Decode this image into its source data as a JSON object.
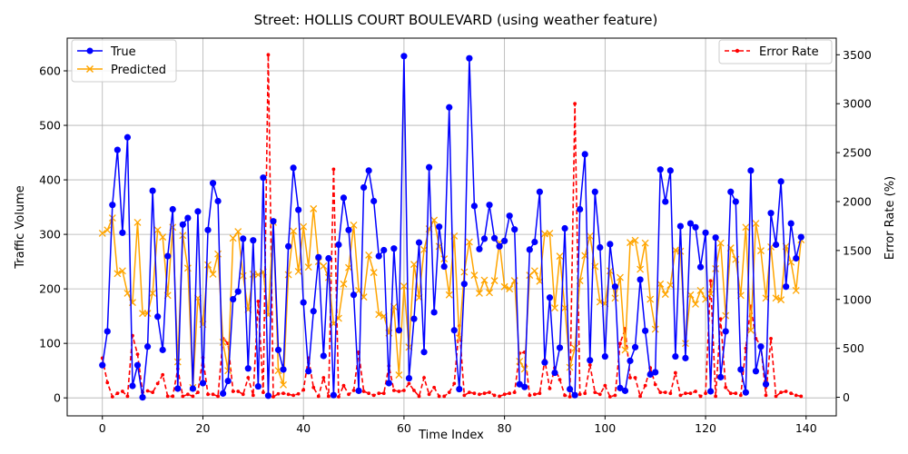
{
  "chart_data": {
    "type": "line",
    "title": "Street: HOLLIS COURT BOULEVARD (using weather feature)",
    "xlabel": "Time Index",
    "ylabel": "Traffic Volume",
    "y2label": "Error Rate (%)",
    "xlim": [
      -7,
      146
    ],
    "ylim": [
      -33,
      660
    ],
    "y2lim": [
      -190,
      3670
    ],
    "x_ticks": [
      0,
      20,
      40,
      60,
      80,
      100,
      120,
      140
    ],
    "y_ticks": [
      0,
      100,
      200,
      300,
      400,
      500,
      600
    ],
    "y2_ticks": [
      0,
      500,
      1000,
      1500,
      2000,
      2500,
      3000,
      3500
    ],
    "grid": true,
    "legend_left_placement": "top-left",
    "legend_right_placement": "top-right",
    "colors": {
      "true": "#0000ff",
      "predicted": "#ffa500",
      "error": "#ff0000"
    },
    "series": [
      {
        "name": "True",
        "axis": "left",
        "style": "solid line, circle markers",
        "values": [
          60,
          122,
          354,
          455,
          303,
          478,
          22,
          60,
          1,
          94,
          380,
          149,
          88,
          260,
          346,
          17,
          318,
          330,
          17,
          342,
          27,
          308,
          394,
          361,
          8,
          31,
          181,
          195,
          292,
          54,
          289,
          21,
          404,
          4,
          324,
          88,
          52,
          278,
          422,
          345,
          175,
          49,
          159,
          258,
          77,
          256,
          5,
          281,
          367,
          308,
          189,
          13,
          386,
          417,
          361,
          260,
          271,
          27,
          274,
          124,
          627,
          36,
          145,
          285,
          84,
          423,
          157,
          314,
          241,
          533,
          124,
          16,
          209,
          623,
          352,
          273,
          292,
          354,
          293,
          278,
          288,
          334,
          309,
          25,
          20,
          272,
          286,
          378,
          65,
          184,
          46,
          92,
          311,
          16,
          5,
          346,
          447,
          69,
          378,
          276,
          76,
          282,
          204,
          18,
          13,
          68,
          93,
          217,
          123,
          43,
          47,
          419,
          360,
          417,
          76,
          315,
          73,
          320,
          313,
          240,
          303,
          12,
          294,
          38,
          122,
          378,
          360,
          52,
          10,
          417,
          49,
          94,
          25,
          339,
          281,
          397,
          204,
          320,
          256,
          295
        ]
      },
      {
        "name": "Predicted",
        "axis": "left",
        "style": "solid line, x markers",
        "values": [
          302,
          308,
          330,
          228,
          233,
          192,
          175,
          322,
          155,
          155,
          192,
          308,
          295,
          188,
          313,
          66,
          298,
          238,
          19,
          183,
          135,
          244,
          227,
          264,
          102,
          50,
          293,
          305,
          224,
          162,
          227,
          226,
          231,
          152,
          322,
          50,
          24,
          226,
          306,
          232,
          314,
          240,
          347,
          250,
          242,
          221,
          136,
          146,
          209,
          239,
          317,
          197,
          185,
          262,
          230,
          153,
          150,
          119,
          167,
          42,
          205,
          93,
          245,
          184,
          272,
          310,
          326,
          278,
          255,
          189,
          297,
          110,
          231,
          286,
          225,
          192,
          216,
          193,
          215,
          285,
          204,
          200,
          215,
          67,
          53,
          225,
          233,
          214,
          301,
          302,
          165,
          260,
          165,
          56,
          91,
          215,
          261,
          297,
          241,
          176,
          173,
          233,
          183,
          221,
          88,
          285,
          289,
          236,
          284,
          181,
          126,
          209,
          190,
          207,
          271,
          269,
          100,
          189,
          172,
          197,
          181,
          191,
          237,
          284,
          151,
          275,
          254,
          188,
          313,
          124,
          320,
          270,
          183,
          277,
          183,
          180,
          278,
          249,
          197,
          290
        ]
      },
      {
        "name": "Error Rate",
        "axis": "right",
        "style": "dashed line, point markers",
        "values": [
          400,
          150,
          5,
          40,
          60,
          10,
          630,
          440,
          50,
          65,
          50,
          140,
          230,
          10,
          10,
          290,
          10,
          30,
          10,
          50,
          405,
          30,
          30,
          10,
          600,
          550,
          60,
          60,
          30,
          200,
          20,
          980,
          50,
          3500,
          5,
          35,
          40,
          30,
          20,
          35,
          75,
          400,
          100,
          10,
          200,
          10,
          2330,
          5,
          120,
          30,
          70,
          460,
          60,
          40,
          20,
          40,
          40,
          320,
          70,
          60,
          70,
          140,
          70,
          10,
          200,
          30,
          100,
          10,
          10,
          50,
          140,
          730,
          20,
          50,
          40,
          30,
          40,
          50,
          20,
          10,
          30,
          40,
          50,
          450,
          460,
          20,
          30,
          40,
          380,
          90,
          300,
          180,
          20,
          5,
          3000,
          30,
          40,
          330,
          50,
          30,
          120,
          5,
          20,
          550,
          700,
          200,
          200,
          10,
          120,
          300,
          130,
          50,
          50,
          40,
          250,
          20,
          40,
          40,
          60,
          10,
          40,
          1190,
          10,
          800,
          100,
          40,
          40,
          20,
          500,
          930,
          600,
          530,
          20,
          600,
          10,
          50,
          60,
          40,
          20,
          10
        ]
      }
    ]
  }
}
